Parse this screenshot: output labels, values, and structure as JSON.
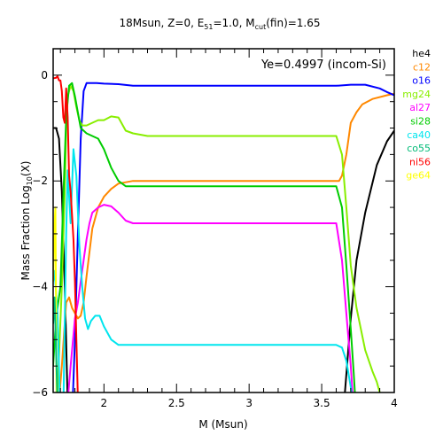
{
  "chart_data": {
    "type": "line",
    "title_main": "18Msun, Z=0, E",
    "title_sub1": "51",
    "title_mid": "=1.0, M",
    "title_sub2": "cut",
    "title_end": "(fin)=1.65",
    "xlabel": "M (Msun)",
    "ylabel_main": "Mass Fraction Log",
    "ylabel_sub": "10",
    "ylabel_end": "(X)",
    "annotation": "Ye=0.4997 (incom-Si)",
    "xlim": [
      1.65,
      4.0
    ],
    "ylim": [
      -6,
      0.5
    ],
    "x_ticks": [
      2,
      2.5,
      3,
      3.5,
      4
    ],
    "x_tick_labels": [
      "2",
      "2.5",
      "3",
      "3.5",
      "4"
    ],
    "y_ticks": [
      0,
      -2,
      -4,
      -6
    ],
    "y_tick_labels": [
      "0",
      "−2",
      "−4",
      "−6"
    ],
    "series": [
      {
        "name": "he4",
        "color": "#000000",
        "x": [
          1.65,
          1.67,
          1.69,
          1.71,
          1.73,
          1.75,
          1.78,
          1.81,
          3.62,
          3.66,
          3.7,
          3.74,
          3.8,
          3.88,
          3.95,
          4.0
        ],
        "y": [
          -1.0,
          -1.0,
          -1.2,
          -2.2,
          -4.0,
          -6.2,
          -7.0,
          -7.0,
          -7.0,
          -6.0,
          -4.6,
          -3.5,
          -2.6,
          -1.7,
          -1.25,
          -1.05
        ]
      },
      {
        "name": "c12",
        "color": "#ff8800",
        "x": [
          1.65,
          1.68,
          1.71,
          1.74,
          1.76,
          1.78,
          1.8,
          1.82,
          1.84,
          1.86,
          1.88,
          1.92,
          1.96,
          2.0,
          2.05,
          2.1,
          2.2,
          2.3,
          3.55,
          3.62,
          3.64,
          3.67,
          3.7,
          3.74,
          3.78,
          3.85,
          3.95,
          4.0
        ],
        "y": [
          -6.5,
          -6.5,
          -5.5,
          -4.3,
          -4.2,
          -4.4,
          -4.5,
          -4.6,
          -4.55,
          -4.3,
          -3.8,
          -2.9,
          -2.5,
          -2.3,
          -2.15,
          -2.05,
          -2.0,
          -2.0,
          -2.0,
          -2.0,
          -1.9,
          -1.5,
          -0.9,
          -0.7,
          -0.55,
          -0.45,
          -0.38,
          -0.35
        ]
      },
      {
        "name": "o16",
        "color": "#0000ff",
        "x": [
          1.65,
          1.7,
          1.75,
          1.78,
          1.8,
          1.82,
          1.84,
          1.86,
          1.88,
          1.9,
          1.95,
          2.0,
          2.1,
          2.2,
          3.5,
          3.6,
          3.7,
          3.8,
          3.9,
          3.95,
          4.0
        ],
        "y": [
          -7.0,
          -7.0,
          -7.0,
          -6.5,
          -5.0,
          -3.0,
          -1.2,
          -0.3,
          -0.15,
          -0.15,
          -0.15,
          -0.16,
          -0.17,
          -0.2,
          -0.2,
          -0.2,
          -0.18,
          -0.18,
          -0.25,
          -0.32,
          -0.38
        ]
      },
      {
        "name": "mg24",
        "color": "#88ee00",
        "x": [
          1.65,
          1.68,
          1.71,
          1.73,
          1.74,
          1.75,
          1.77,
          1.79,
          1.81,
          1.83,
          1.85,
          1.88,
          1.92,
          1.96,
          2.0,
          2.05,
          2.1,
          2.15,
          2.2,
          2.3,
          3.6,
          3.64,
          3.67,
          3.7,
          3.74,
          3.8,
          3.85,
          3.88,
          3.9
        ],
        "y": [
          -6.5,
          -6.0,
          -4.0,
          -2.2,
          -1.0,
          -0.4,
          -0.2,
          -0.3,
          -0.6,
          -0.85,
          -0.95,
          -0.95,
          -0.9,
          -0.85,
          -0.85,
          -0.78,
          -0.8,
          -1.05,
          -1.1,
          -1.15,
          -1.15,
          -1.5,
          -2.5,
          -3.6,
          -4.4,
          -5.2,
          -5.6,
          -5.8,
          -6.0
        ]
      },
      {
        "name": "si28",
        "color": "#00cc00",
        "x": [
          1.65,
          1.67,
          1.7,
          1.72,
          1.74,
          1.76,
          1.78,
          1.8,
          1.84,
          1.88,
          1.92,
          1.96,
          2.0,
          2.05,
          2.1,
          2.15,
          2.2,
          2.3,
          3.6,
          3.64,
          3.67,
          3.7,
          3.72,
          3.74
        ],
        "y": [
          -5.5,
          -4.6,
          -4.0,
          -2.3,
          -0.8,
          -0.2,
          -0.15,
          -0.4,
          -1.0,
          -1.1,
          -1.15,
          -1.2,
          -1.4,
          -1.75,
          -2.0,
          -2.1,
          -2.1,
          -2.1,
          -2.1,
          -2.5,
          -3.6,
          -4.8,
          -5.6,
          -6.5
        ]
      },
      {
        "name": "al27",
        "color": "#ff00ff",
        "x": [
          1.65,
          1.7,
          1.74,
          1.77,
          1.8,
          1.82,
          1.84,
          1.86,
          1.88,
          1.9,
          1.92,
          1.96,
          2.0,
          2.05,
          2.1,
          2.15,
          2.2,
          3.6,
          3.64,
          3.67,
          3.7,
          3.72
        ],
        "y": [
          -7.0,
          -7.0,
          -6.5,
          -5.5,
          -4.6,
          -4.3,
          -3.9,
          -3.5,
          -3.1,
          -2.8,
          -2.6,
          -2.5,
          -2.45,
          -2.48,
          -2.6,
          -2.75,
          -2.8,
          -2.8,
          -3.5,
          -4.5,
          -5.5,
          -6.3
        ]
      },
      {
        "name": "ca40",
        "color": "#00e5ee",
        "x": [
          1.65,
          1.66,
          1.68,
          1.7,
          1.72,
          1.74,
          1.75,
          1.77,
          1.79,
          1.81,
          1.83,
          1.85,
          1.87,
          1.89,
          1.91,
          1.94,
          1.97,
          2.0,
          2.05,
          2.1,
          2.2,
          3.6,
          3.64,
          3.67,
          3.7,
          3.72
        ],
        "y": [
          -3.9,
          -3.7,
          -4.5,
          -6.5,
          -6.3,
          -3.0,
          -1.8,
          -2.8,
          -1.4,
          -1.9,
          -3.2,
          -4.0,
          -4.6,
          -4.8,
          -4.65,
          -4.55,
          -4.55,
          -4.75,
          -5.0,
          -5.1,
          -5.1,
          -5.1,
          -5.15,
          -5.4,
          -5.9,
          -6.3
        ]
      },
      {
        "name": "ni56",
        "color": "#ff0000",
        "x": [
          1.65,
          1.67,
          1.68,
          1.69,
          1.7,
          1.71,
          1.72,
          1.73,
          1.74,
          1.75,
          1.76,
          1.77,
          1.79,
          1.8,
          1.81,
          1.82,
          1.83
        ],
        "y": [
          -0.06,
          -0.05,
          -0.02,
          -0.1,
          -0.1,
          -0.3,
          -0.8,
          -0.9,
          -0.25,
          -0.8,
          -1.9,
          -2.2,
          -3.1,
          -3.9,
          -5.0,
          -6.1,
          -7.0
        ]
      },
      {
        "name": "ge64",
        "color": "#ffff00",
        "x": [
          1.65,
          1.66,
          1.665,
          1.67,
          1.675
        ],
        "y": [
          -3.9,
          -2.8,
          -2.5,
          -4.5,
          -7.0
        ]
      },
      {
        "name": "co55",
        "color": "#00bb77",
        "x": [
          1.65,
          1.66,
          1.67,
          1.68,
          1.69
        ],
        "y": [
          -4.7,
          -4.2,
          -5.2,
          -6.2,
          -7.0
        ]
      }
    ],
    "legend": [
      {
        "label": "he4",
        "color": "#000000"
      },
      {
        "label": "c12",
        "color": "#ff8800"
      },
      {
        "label": "o16",
        "color": "#0000ff"
      },
      {
        "label": "mg24",
        "color": "#88ee00"
      },
      {
        "label": "al27",
        "color": "#ff00ff"
      },
      {
        "label": "si28",
        "color": "#00cc00"
      },
      {
        "label": "ca40",
        "color": "#00e5ee"
      },
      {
        "label": "co55",
        "color": "#00bb77"
      },
      {
        "label": "ni56",
        "color": "#ff0000"
      },
      {
        "label": "ge64",
        "color": "#ffff00"
      }
    ],
    "legend_placement": "right-outside",
    "grid": false
  }
}
